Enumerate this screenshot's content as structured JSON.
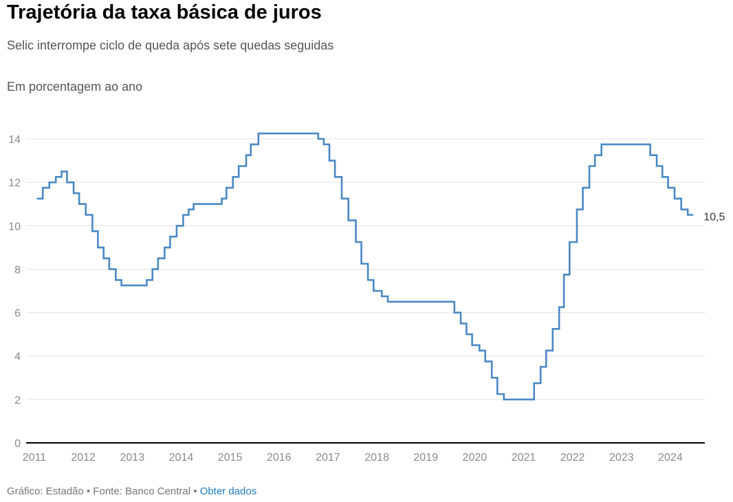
{
  "header": {
    "title": "Trajetória da taxa básica de juros",
    "subtitle": "Selic interrompe ciclo de queda após sete quedas seguidas",
    "unit": "Em porcentagem ao ano"
  },
  "footer": {
    "credit": "Gráfico: Estadão • Fonte: Banco Central • ",
    "link": "Obter dados"
  },
  "colors": {
    "line": "#4a88c4",
    "grid": "#e0e0e0",
    "axis": "#000000",
    "tick": "#8a8a8a"
  },
  "chart_data": {
    "type": "line",
    "step": true,
    "title": "Trajetória da taxa básica de juros",
    "ylabel": "Em porcentagem ao ano",
    "ylim": [
      0,
      14
    ],
    "xlim": [
      2011,
      2024.55
    ],
    "yticks": [
      0,
      2,
      4,
      6,
      8,
      10,
      12,
      14
    ],
    "xticks": [
      "2011",
      "2012",
      "2013",
      "2014",
      "2015",
      "2016",
      "2017",
      "2018",
      "2019",
      "2020",
      "2021",
      "2022",
      "2023",
      "2024"
    ],
    "end_label": "10,5",
    "end_date": "2024-06-19",
    "series": [
      {
        "name": "Selic",
        "points": [
          [
            "2011-01-19",
            11.25
          ],
          [
            "2011-03-02",
            11.75
          ],
          [
            "2011-04-20",
            12.0
          ],
          [
            "2011-06-08",
            12.25
          ],
          [
            "2011-07-20",
            12.5
          ],
          [
            "2011-08-31",
            12.0
          ],
          [
            "2011-10-19",
            11.5
          ],
          [
            "2011-11-30",
            11.0
          ],
          [
            "2012-01-18",
            10.5
          ],
          [
            "2012-03-07",
            9.75
          ],
          [
            "2012-04-18",
            9.0
          ],
          [
            "2012-05-30",
            8.5
          ],
          [
            "2012-07-11",
            8.0
          ],
          [
            "2012-08-29",
            7.5
          ],
          [
            "2012-10-10",
            7.25
          ],
          [
            "2013-04-17",
            7.5
          ],
          [
            "2013-05-29",
            8.0
          ],
          [
            "2013-07-10",
            8.5
          ],
          [
            "2013-08-28",
            9.0
          ],
          [
            "2013-10-09",
            9.5
          ],
          [
            "2013-11-27",
            10.0
          ],
          [
            "2014-01-15",
            10.5
          ],
          [
            "2014-02-26",
            10.75
          ],
          [
            "2014-04-02",
            11.0
          ],
          [
            "2014-10-29",
            11.25
          ],
          [
            "2014-12-03",
            11.75
          ],
          [
            "2015-01-21",
            12.25
          ],
          [
            "2015-03-04",
            12.75
          ],
          [
            "2015-04-29",
            13.25
          ],
          [
            "2015-06-03",
            13.75
          ],
          [
            "2015-07-29",
            14.25
          ],
          [
            "2016-10-19",
            14.0
          ],
          [
            "2016-11-30",
            13.75
          ],
          [
            "2017-01-11",
            13.0
          ],
          [
            "2017-02-22",
            12.25
          ],
          [
            "2017-04-12",
            11.25
          ],
          [
            "2017-05-31",
            10.25
          ],
          [
            "2017-07-26",
            9.25
          ],
          [
            "2017-09-06",
            8.25
          ],
          [
            "2017-10-25",
            7.5
          ],
          [
            "2017-12-06",
            7.0
          ],
          [
            "2018-02-07",
            6.75
          ],
          [
            "2018-03-21",
            6.5
          ],
          [
            "2019-07-31",
            6.0
          ],
          [
            "2019-09-18",
            5.5
          ],
          [
            "2019-10-30",
            5.0
          ],
          [
            "2019-12-11",
            4.5
          ],
          [
            "2020-02-05",
            4.25
          ],
          [
            "2020-03-18",
            3.75
          ],
          [
            "2020-05-06",
            3.0
          ],
          [
            "2020-06-17",
            2.25
          ],
          [
            "2020-08-05",
            2.0
          ],
          [
            "2021-03-17",
            2.75
          ],
          [
            "2021-05-05",
            3.5
          ],
          [
            "2021-06-16",
            4.25
          ],
          [
            "2021-08-04",
            5.25
          ],
          [
            "2021-09-22",
            6.25
          ],
          [
            "2021-10-27",
            7.75
          ],
          [
            "2021-12-08",
            9.25
          ],
          [
            "2022-02-02",
            10.75
          ],
          [
            "2022-03-16",
            11.75
          ],
          [
            "2022-05-04",
            12.75
          ],
          [
            "2022-06-15",
            13.25
          ],
          [
            "2022-08-03",
            13.75
          ],
          [
            "2023-08-02",
            13.25
          ],
          [
            "2023-09-20",
            12.75
          ],
          [
            "2023-11-01",
            12.25
          ],
          [
            "2023-12-13",
            11.75
          ],
          [
            "2024-01-31",
            11.25
          ],
          [
            "2024-03-20",
            10.75
          ],
          [
            "2024-05-08",
            10.5
          ]
        ]
      }
    ]
  }
}
